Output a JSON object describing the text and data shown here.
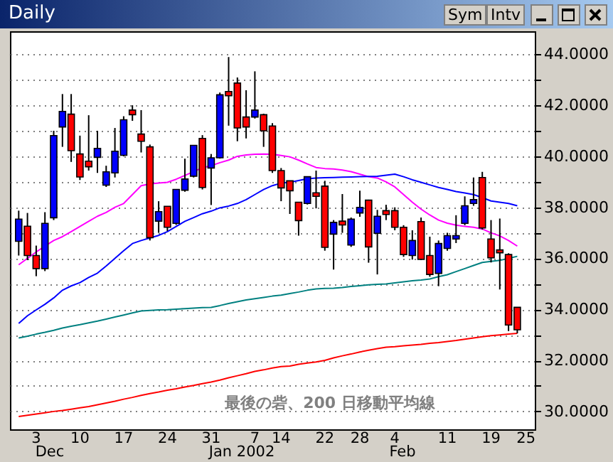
{
  "chart_data": {
    "type": "candlestick",
    "title": "Daily",
    "categories": [
      null,
      null,
      "3",
      null,
      null,
      null,
      null,
      "10",
      null,
      null,
      null,
      null,
      "17",
      null,
      null,
      null,
      null,
      "24",
      null,
      null,
      null,
      null,
      "31",
      null,
      null,
      null,
      null,
      "7",
      null,
      null,
      "14",
      null,
      null,
      null,
      null,
      "22",
      null,
      null,
      null,
      "28",
      null,
      null,
      null,
      "4",
      null,
      null,
      null,
      null,
      null,
      "11",
      null,
      null,
      null,
      null,
      "19",
      null,
      null,
      null,
      "25"
    ],
    "ohlc": [
      [
        36.67,
        37.87,
        36.11,
        37.54
      ],
      [
        37.26,
        37.78,
        35.93,
        36.11
      ],
      [
        36.11,
        36.5,
        35.3,
        35.6
      ],
      [
        35.6,
        37.81,
        35.5,
        37.37
      ],
      [
        37.59,
        41.0,
        37.5,
        40.81
      ],
      [
        41.15,
        42.44,
        40.37,
        41.76
      ],
      [
        41.65,
        42.44,
        39.78,
        40.22
      ],
      [
        40.09,
        40.81,
        39.07,
        39.19
      ],
      [
        39.81,
        41.61,
        39.44,
        39.59
      ],
      [
        39.96,
        41.0,
        39.35,
        40.31
      ],
      [
        38.87,
        39.63,
        38.8,
        39.39
      ],
      [
        39.35,
        41.11,
        39.17,
        40.2
      ],
      [
        40.04,
        41.57,
        40.0,
        41.43
      ],
      [
        41.81,
        42.0,
        41.39,
        41.63
      ],
      [
        40.87,
        41.81,
        40.15,
        40.59
      ],
      [
        40.37,
        40.46,
        36.7,
        36.81
      ],
      [
        37.46,
        38.24,
        37.0,
        37.83
      ],
      [
        38.04,
        38.04,
        37.07,
        37.22
      ],
      [
        37.37,
        38.7,
        37.31,
        38.7
      ],
      [
        38.67,
        39.91,
        38.61,
        39.11
      ],
      [
        39.22,
        40.43,
        39.17,
        40.43
      ],
      [
        40.7,
        40.83,
        38.7,
        38.78
      ],
      [
        39.54,
        40.09,
        38.09,
        39.94
      ],
      [
        39.94,
        42.5,
        39.91,
        42.41
      ],
      [
        42.54,
        43.89,
        41.2,
        42.37
      ],
      [
        42.87,
        43.09,
        40.59,
        41.11
      ],
      [
        41.54,
        42.59,
        40.7,
        41.15
      ],
      [
        41.54,
        43.33,
        41.48,
        41.81
      ],
      [
        41.63,
        41.67,
        40.37,
        41.0
      ],
      [
        41.19,
        41.3,
        39.35,
        39.44
      ],
      [
        39.44,
        39.54,
        38.24,
        38.76
      ],
      [
        39.04,
        39.04,
        37.74,
        38.65
      ],
      [
        38.2,
        38.2,
        36.89,
        37.48
      ],
      [
        38.15,
        39.2,
        38.11,
        39.2
      ],
      [
        38.57,
        39.44,
        37.96,
        38.43
      ],
      [
        38.83,
        39.04,
        36.3,
        36.43
      ],
      [
        36.95,
        37.5,
        35.56,
        37.41
      ],
      [
        37.46,
        38.52,
        37.0,
        37.31
      ],
      [
        36.52,
        37.6,
        36.45,
        37.54
      ],
      [
        37.78,
        38.65,
        37.63,
        38.0
      ],
      [
        38.28,
        38.3,
        35.83,
        36.45
      ],
      [
        36.98,
        37.9,
        35.37,
        37.65
      ],
      [
        37.87,
        38.1,
        37.5,
        37.72
      ],
      [
        37.87,
        38.0,
        37.1,
        37.22
      ],
      [
        37.22,
        37.3,
        36.06,
        36.15
      ],
      [
        36.11,
        37.1,
        35.95,
        36.7
      ],
      [
        37.44,
        37.6,
        35.93,
        35.96
      ],
      [
        36.11,
        36.85,
        35.28,
        35.37
      ],
      [
        35.41,
        36.7,
        34.91,
        36.58
      ],
      [
        36.39,
        37.0,
        36.3,
        36.89
      ],
      [
        36.76,
        37.69,
        36.6,
        36.89
      ],
      [
        37.37,
        38.43,
        37.3,
        38.06
      ],
      [
        38.15,
        39.17,
        38.06,
        38.3
      ],
      [
        39.17,
        39.39,
        37.13,
        37.19
      ],
      [
        36.76,
        37.5,
        35.84,
        36.02
      ],
      [
        36.33,
        37.56,
        34.78,
        36.22
      ],
      [
        36.15,
        36.2,
        33.15,
        33.39
      ],
      [
        34.08,
        34.08,
        33.06,
        33.2
      ],
      null
    ],
    "colors": [
      "#0000ff",
      "#ff0000",
      "#ff0000",
      "#0000ff",
      "#0000ff",
      "#0000ff",
      "#ff0000",
      "#ff0000",
      "#ff0000",
      "#0000ff",
      "#0000ff",
      "#0000ff",
      "#0000ff",
      "#ff0000",
      "#ff0000",
      "#ff0000",
      "#0000ff",
      "#ff0000",
      "#0000ff",
      "#0000ff",
      "#0000ff",
      "#ff0000",
      "#0000ff",
      "#0000ff",
      "#ff0000",
      "#ff0000",
      "#ff0000",
      "#0000ff",
      "#ff0000",
      "#ff0000",
      "#ff0000",
      "#ff0000",
      "#ff0000",
      "#0000ff",
      "#ff0000",
      "#ff0000",
      "#0000ff",
      "#ff0000",
      "#0000ff",
      "#0000ff",
      "#ff0000",
      "#0000ff",
      "#ff0000",
      "#ff0000",
      "#ff0000",
      "#0000ff",
      "#ff0000",
      "#ff0000",
      "#0000ff",
      "#0000ff",
      "#0000ff",
      "#0000ff",
      "#0000ff",
      "#ff0000",
      "#ff0000",
      "#ff0000",
      "#ff0000",
      "#ff0000",
      null
    ],
    "series": [
      {
        "type": "line",
        "color": "#ff00ff",
        "values": [
          35.75,
          36.0,
          36.25,
          36.48,
          36.7,
          36.85,
          37.05,
          37.25,
          37.45,
          37.65,
          37.8,
          38.0,
          38.15,
          38.5,
          38.85,
          38.92,
          38.95,
          38.98,
          39.1,
          39.25,
          39.4,
          39.55,
          39.63,
          39.75,
          39.85,
          40.0,
          40.05,
          40.08,
          40.09,
          40.08,
          40.03,
          39.98,
          39.85,
          39.7,
          39.56,
          39.52,
          39.5,
          39.46,
          39.4,
          39.3,
          39.2,
          39.15,
          39.0,
          38.8,
          38.5,
          38.2,
          37.93,
          37.7,
          37.5,
          37.38,
          37.3,
          37.25,
          37.22,
          37.15,
          37.0,
          36.88,
          36.7,
          36.48,
          null
        ]
      },
      {
        "type": "line",
        "color": "#0000ff",
        "values": [
          33.45,
          33.75,
          33.98,
          34.2,
          34.45,
          34.75,
          34.92,
          35.05,
          35.25,
          35.42,
          35.7,
          36.0,
          36.3,
          36.58,
          36.7,
          36.8,
          36.9,
          37.05,
          37.25,
          37.45,
          37.6,
          37.75,
          37.85,
          37.98,
          38.05,
          38.15,
          38.3,
          38.5,
          38.7,
          38.85,
          38.95,
          38.98,
          39.05,
          39.12,
          39.15,
          39.16,
          39.17,
          39.18,
          39.19,
          39.2,
          39.21,
          39.22,
          39.26,
          39.3,
          39.2,
          39.08,
          38.98,
          38.88,
          38.78,
          38.7,
          38.62,
          38.56,
          38.5,
          38.38,
          38.25,
          38.2,
          38.15,
          38.06,
          null
        ]
      },
      {
        "type": "line",
        "color": "#008080",
        "values": [
          32.88,
          32.95,
          33.03,
          33.1,
          33.18,
          33.27,
          33.34,
          33.4,
          33.47,
          33.54,
          33.62,
          33.7,
          33.78,
          33.86,
          33.94,
          33.96,
          33.98,
          33.99,
          34.01,
          34.03,
          34.05,
          34.07,
          34.08,
          34.15,
          34.23,
          34.3,
          34.37,
          34.42,
          34.47,
          34.52,
          34.56,
          34.62,
          34.68,
          34.75,
          34.8,
          34.82,
          34.83,
          34.86,
          34.9,
          34.93,
          34.96,
          34.98,
          35.0,
          35.04,
          35.08,
          35.12,
          35.15,
          35.19,
          35.28,
          35.36,
          35.48,
          35.6,
          35.72,
          35.84,
          35.88,
          35.92,
          36.0,
          36.08,
          null
        ]
      },
      {
        "type": "line",
        "color": "#ff0000",
        "values": [
          29.8,
          29.85,
          29.9,
          29.95,
          30.0,
          30.04,
          30.09,
          30.14,
          30.19,
          30.26,
          30.33,
          30.4,
          30.48,
          30.55,
          30.63,
          30.7,
          30.76,
          30.83,
          30.89,
          30.96,
          31.02,
          31.09,
          31.15,
          31.23,
          31.32,
          31.4,
          31.48,
          31.57,
          31.63,
          31.7,
          31.76,
          31.78,
          31.85,
          31.9,
          31.94,
          32.0,
          32.1,
          32.18,
          32.25,
          32.33,
          32.4,
          32.46,
          32.52,
          32.54,
          32.57,
          32.6,
          32.63,
          32.67,
          32.7,
          32.74,
          32.78,
          32.83,
          32.88,
          32.93,
          32.97,
          33.0,
          33.03,
          33.06,
          null
        ]
      }
    ],
    "ylim": [
      29.3,
      44.9
    ],
    "yticks": [
      {
        "value": 30,
        "label": "30.0000"
      },
      {
        "value": 31,
        "label": null
      },
      {
        "value": 32,
        "label": "32.0000"
      },
      {
        "value": 33,
        "label": null
      },
      {
        "value": 34,
        "label": "34.0000"
      },
      {
        "value": 35,
        "label": null
      },
      {
        "value": 36,
        "label": "36.0000"
      },
      {
        "value": 37,
        "label": null
      },
      {
        "value": 38,
        "label": "38.0000"
      },
      {
        "value": 39,
        "label": null
      },
      {
        "value": 40,
        "label": "40.0000"
      },
      {
        "value": 41,
        "label": null
      },
      {
        "value": 42,
        "label": "42.0000"
      },
      {
        "value": 43,
        "label": null
      },
      {
        "value": 44,
        "label": "44.0000"
      }
    ],
    "grid": "y",
    "annotations": [
      "Dec",
      "Jan 2002",
      "Feb",
      "最後の砦、200 日移動平均線",
      "Sym",
      "Intv"
    ]
  }
}
